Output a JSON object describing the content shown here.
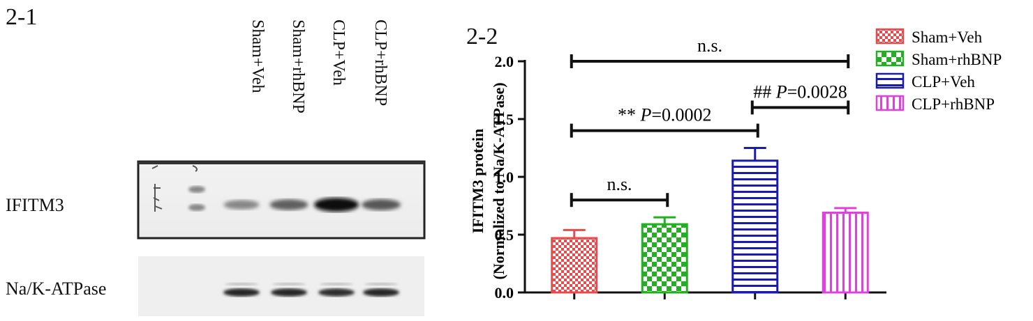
{
  "figure": {
    "panel_1_label": "2-1",
    "panel_2_label": "2-2"
  },
  "blot": {
    "lanes": [
      "Sham+Veh",
      "Sham+rhBNP",
      "CLP+Veh",
      "CLP+rhBNP"
    ],
    "rows": [
      "IFITM3",
      "Na/K-ATPase"
    ],
    "ifitm3_relative_intensity": [
      0.35,
      0.55,
      1.0,
      0.6
    ],
    "atpase_relative_intensity": [
      0.9,
      0.9,
      0.85,
      0.9
    ]
  },
  "chart_data": {
    "type": "bar",
    "title": "",
    "xlabel": "",
    "ylabel": "IFITM3 protein",
    "ylabel_line2": "(Normalized to Na/K-ATPase)",
    "ylim": [
      0,
      2.0
    ],
    "yticks": [
      "0.0",
      "0.5",
      "1.0",
      "1.5",
      "2.0"
    ],
    "categories": [
      "Sham+Veh",
      "Sham+rhBNP",
      "CLP+Veh",
      "CLP+rhBNP"
    ],
    "values": [
      0.47,
      0.59,
      1.14,
      0.69
    ],
    "errors": [
      0.07,
      0.06,
      0.11,
      0.04
    ],
    "colors": [
      "#e84b4b",
      "#22b022",
      "#1a1ab0",
      "#e040e0"
    ],
    "patterns": [
      "checker-small",
      "checker-large",
      "horizontal-lines",
      "vertical-lines"
    ],
    "legend": {
      "placement": "top-right",
      "entries": [
        "Sham+Veh",
        "Sham+rhBNP",
        "CLP+Veh",
        "CLP+rhBNP"
      ]
    },
    "annotations": [
      {
        "from": 0,
        "to": 3,
        "y": 2.0,
        "prefix": "n.s.",
        "p_label": "",
        "p_value": ""
      },
      {
        "from": 2,
        "to": 3,
        "y": 1.6,
        "prefix": "## ",
        "p_label": "P",
        "p_value": "=0.0028"
      },
      {
        "from": 0,
        "to": 2,
        "y": 1.4,
        "prefix": "** ",
        "p_label": "P",
        "p_value": "=0.0002"
      },
      {
        "from": 0,
        "to": 1,
        "y": 0.8,
        "prefix": "n.s.",
        "p_label": "",
        "p_value": ""
      }
    ],
    "grid": false
  }
}
